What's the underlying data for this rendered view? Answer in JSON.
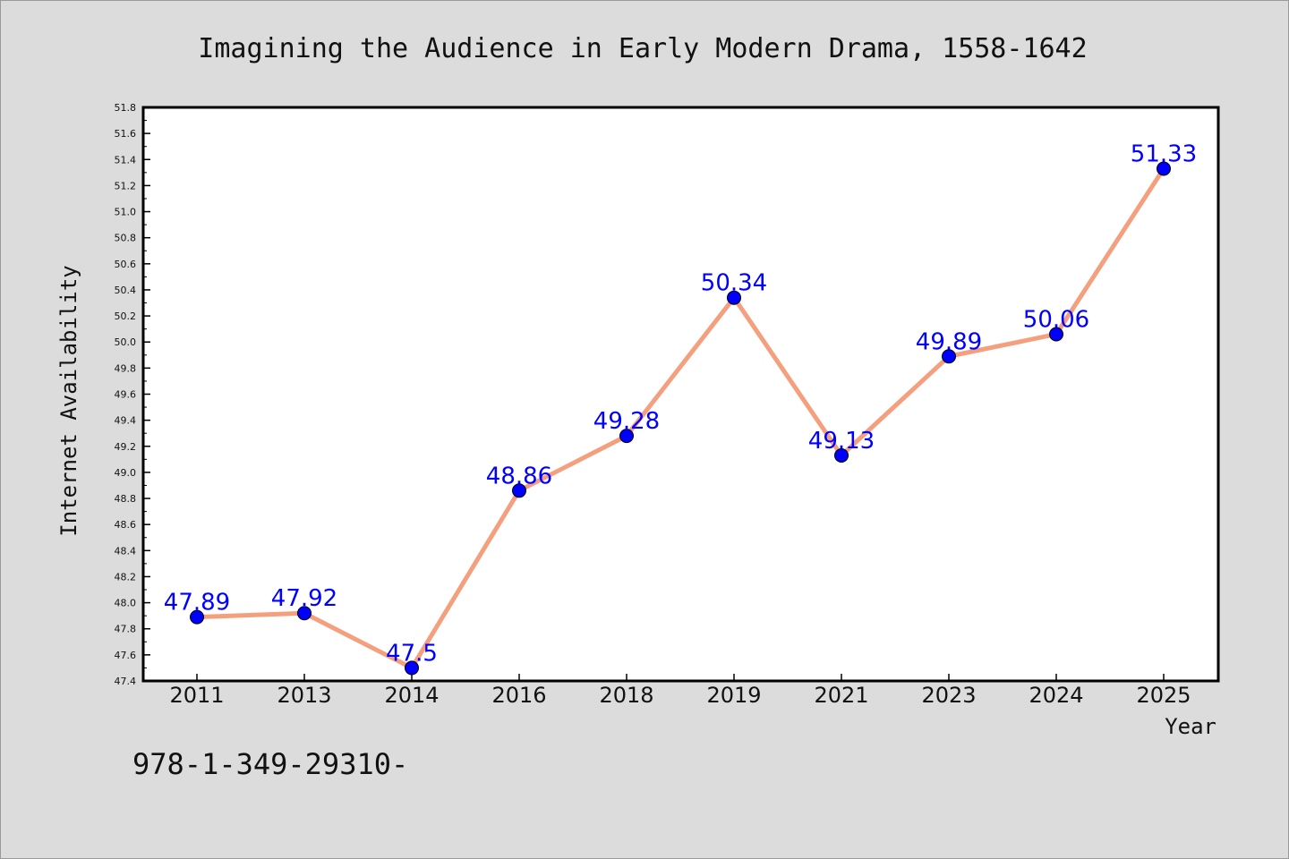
{
  "chart_data": {
    "type": "line",
    "title": "Imagining the Audience in Early Modern Drama, 1558-1642",
    "xlabel": "Year",
    "ylabel": "Internet Availability",
    "categories": [
      "2011",
      "2013",
      "2014",
      "2016",
      "2018",
      "2019",
      "2021",
      "2023",
      "2024",
      "2025"
    ],
    "series": [
      {
        "values": [
          47.89,
          47.92,
          47.5,
          48.86,
          49.28,
          50.34,
          49.13,
          49.89,
          50.06,
          51.33
        ],
        "labels": [
          "47.89",
          "47.92",
          "47.5",
          "48.86",
          "49.28",
          "50.34",
          "49.13",
          "49.89",
          "50.06",
          "51.33"
        ],
        "line_color": "#f4a07e",
        "marker_color": "#0000ff"
      }
    ],
    "ylim": [
      47.4,
      51.8
    ],
    "ytick_step": 0.2,
    "grid": false,
    "legend": "none"
  },
  "footer": {
    "text": "978-1-349-29310-"
  },
  "colors": {
    "background": "#dcdcdc",
    "plot_background": "#ffffff",
    "line": "#f4a07e",
    "marker": "#0000ff",
    "label": "#0000ff"
  }
}
